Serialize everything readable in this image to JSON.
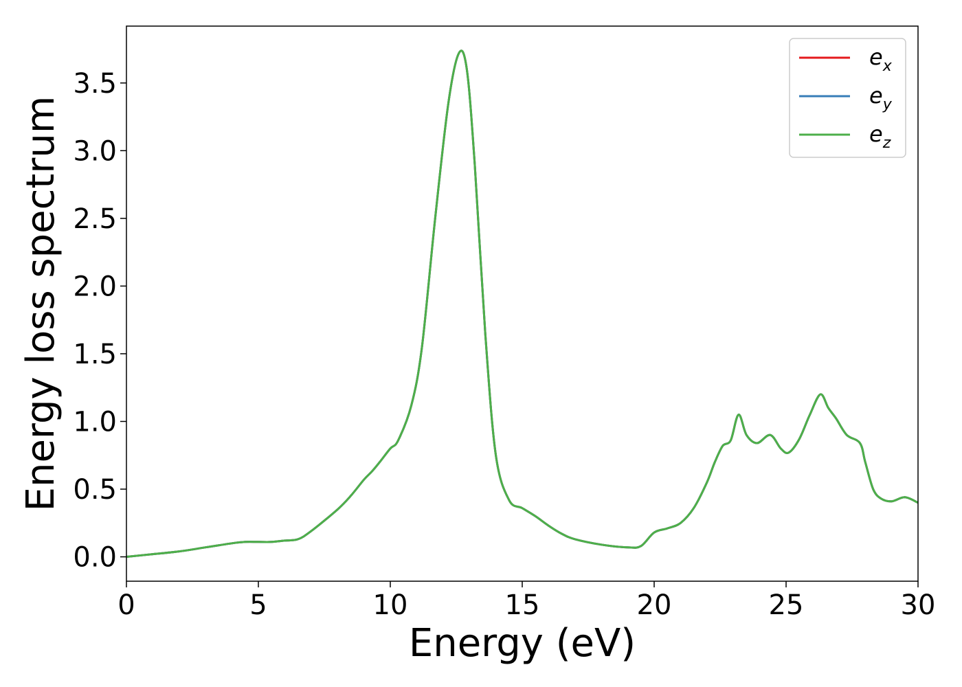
{
  "chart_data": {
    "type": "line",
    "title": "",
    "xlabel": "Energy (eV)",
    "ylabel": "Energy loss spectrum",
    "xlim": [
      0,
      30
    ],
    "ylim": [
      -0.18,
      3.92
    ],
    "xticks": [
      "0",
      "5",
      "10",
      "15",
      "20",
      "25",
      "30"
    ],
    "yticks": [
      "0.0",
      "0.5",
      "1.0",
      "1.5",
      "2.0",
      "2.5",
      "3.0",
      "3.5"
    ],
    "grid": false,
    "legend_position": "top-right",
    "series": [
      {
        "name": "e_x",
        "legend_base": "e",
        "legend_sub": "x",
        "color": "#e41a1c",
        "x": [
          0,
          1,
          2,
          3,
          4,
          4.5,
          5,
          5.5,
          6,
          6.5,
          7,
          8,
          8.5,
          9,
          9.3,
          9.6,
          10,
          10.3,
          10.8,
          11.2,
          11.7,
          12.2,
          12.6,
          12.9,
          13.2,
          13.6,
          14,
          14.5,
          15,
          15.5,
          16,
          16.5,
          17,
          18,
          19,
          19.5,
          20,
          20.5,
          21,
          21.5,
          22,
          22.3,
          22.6,
          22.9,
          23.2,
          23.5,
          23.9,
          24.4,
          24.8,
          25.1,
          25.5,
          25.9,
          26.3,
          26.6,
          26.9,
          27.3,
          27.8,
          28,
          28.3,
          28.6,
          29,
          29.5,
          30
        ],
        "y": [
          0,
          0.02,
          0.04,
          0.07,
          0.1,
          0.11,
          0.11,
          0.11,
          0.12,
          0.13,
          0.19,
          0.35,
          0.45,
          0.57,
          0.63,
          0.7,
          0.8,
          0.86,
          1.12,
          1.55,
          2.5,
          3.35,
          3.72,
          3.6,
          2.9,
          1.65,
          0.75,
          0.42,
          0.36,
          0.3,
          0.23,
          0.17,
          0.13,
          0.09,
          0.07,
          0.08,
          0.18,
          0.21,
          0.25,
          0.36,
          0.55,
          0.7,
          0.82,
          0.86,
          1.05,
          0.9,
          0.84,
          0.9,
          0.8,
          0.77,
          0.87,
          1.05,
          1.2,
          1.1,
          1.02,
          0.9,
          0.84,
          0.7,
          0.5,
          0.43,
          0.41,
          0.44,
          0.4
        ]
      },
      {
        "name": "e_y",
        "legend_base": "e",
        "legend_sub": "y",
        "color": "#377eb8",
        "x": [
          0,
          1,
          2,
          3,
          4,
          4.5,
          5,
          5.5,
          6,
          6.5,
          7,
          8,
          8.5,
          9,
          9.3,
          9.6,
          10,
          10.3,
          10.8,
          11.2,
          11.7,
          12.2,
          12.6,
          12.9,
          13.2,
          13.6,
          14,
          14.5,
          15,
          15.5,
          16,
          16.5,
          17,
          18,
          19,
          19.5,
          20,
          20.5,
          21,
          21.5,
          22,
          22.3,
          22.6,
          22.9,
          23.2,
          23.5,
          23.9,
          24.4,
          24.8,
          25.1,
          25.5,
          25.9,
          26.3,
          26.6,
          26.9,
          27.3,
          27.8,
          28,
          28.3,
          28.6,
          29,
          29.5,
          30
        ],
        "y": [
          0,
          0.02,
          0.04,
          0.07,
          0.1,
          0.11,
          0.11,
          0.11,
          0.12,
          0.13,
          0.19,
          0.35,
          0.45,
          0.57,
          0.63,
          0.7,
          0.8,
          0.86,
          1.12,
          1.55,
          2.5,
          3.35,
          3.72,
          3.6,
          2.9,
          1.65,
          0.75,
          0.42,
          0.36,
          0.3,
          0.23,
          0.17,
          0.13,
          0.09,
          0.07,
          0.08,
          0.18,
          0.21,
          0.25,
          0.36,
          0.55,
          0.7,
          0.82,
          0.86,
          1.05,
          0.9,
          0.84,
          0.9,
          0.8,
          0.77,
          0.87,
          1.05,
          1.2,
          1.1,
          1.02,
          0.9,
          0.84,
          0.7,
          0.5,
          0.43,
          0.41,
          0.44,
          0.4
        ]
      },
      {
        "name": "e_z",
        "legend_base": "e",
        "legend_sub": "z",
        "color": "#4daf4a",
        "x": [
          0,
          1,
          2,
          3,
          4,
          4.5,
          5,
          5.5,
          6,
          6.5,
          7,
          8,
          8.5,
          9,
          9.3,
          9.6,
          10,
          10.3,
          10.8,
          11.2,
          11.7,
          12.2,
          12.6,
          12.9,
          13.2,
          13.6,
          14,
          14.5,
          15,
          15.5,
          16,
          16.5,
          17,
          18,
          19,
          19.5,
          20,
          20.5,
          21,
          21.5,
          22,
          22.3,
          22.6,
          22.9,
          23.2,
          23.5,
          23.9,
          24.4,
          24.8,
          25.1,
          25.5,
          25.9,
          26.3,
          26.6,
          26.9,
          27.3,
          27.8,
          28,
          28.3,
          28.6,
          29,
          29.5,
          30
        ],
        "y": [
          0,
          0.02,
          0.04,
          0.07,
          0.1,
          0.11,
          0.11,
          0.11,
          0.12,
          0.13,
          0.19,
          0.35,
          0.45,
          0.57,
          0.63,
          0.7,
          0.8,
          0.86,
          1.12,
          1.55,
          2.5,
          3.35,
          3.72,
          3.6,
          2.9,
          1.65,
          0.75,
          0.42,
          0.36,
          0.3,
          0.23,
          0.17,
          0.13,
          0.09,
          0.07,
          0.08,
          0.18,
          0.21,
          0.25,
          0.36,
          0.55,
          0.7,
          0.82,
          0.86,
          1.05,
          0.9,
          0.84,
          0.9,
          0.8,
          0.77,
          0.87,
          1.05,
          1.2,
          1.1,
          1.02,
          0.9,
          0.84,
          0.7,
          0.5,
          0.43,
          0.41,
          0.44,
          0.4
        ]
      }
    ]
  }
}
